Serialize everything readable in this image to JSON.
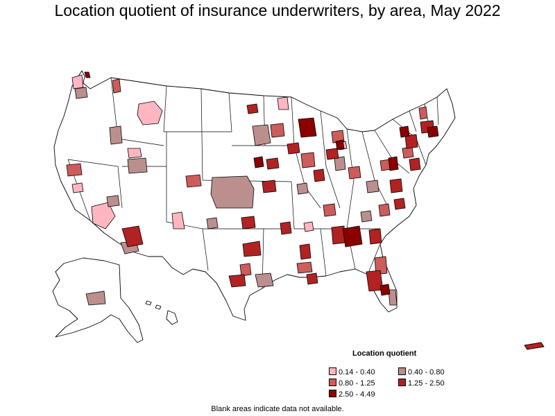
{
  "title": "Location quotient of insurance underwriters, by area, May 2022",
  "legend": {
    "title": "Location quotient",
    "items": [
      {
        "label": "0.14 - 0.40",
        "color": "#ffb6c1"
      },
      {
        "label": "0.40 - 0.80",
        "color": "#bc8f8f"
      },
      {
        "label": "0.80 - 1.25",
        "color": "#cd5c5c"
      },
      {
        "label": "1.25 - 2.50",
        "color": "#b22222"
      },
      {
        "label": "2.50 - 4.49",
        "color": "#8b0000"
      }
    ]
  },
  "note": "Blank areas indicate data not available.",
  "colors": {
    "no_data": "#ffffff",
    "border": "#000000"
  }
}
